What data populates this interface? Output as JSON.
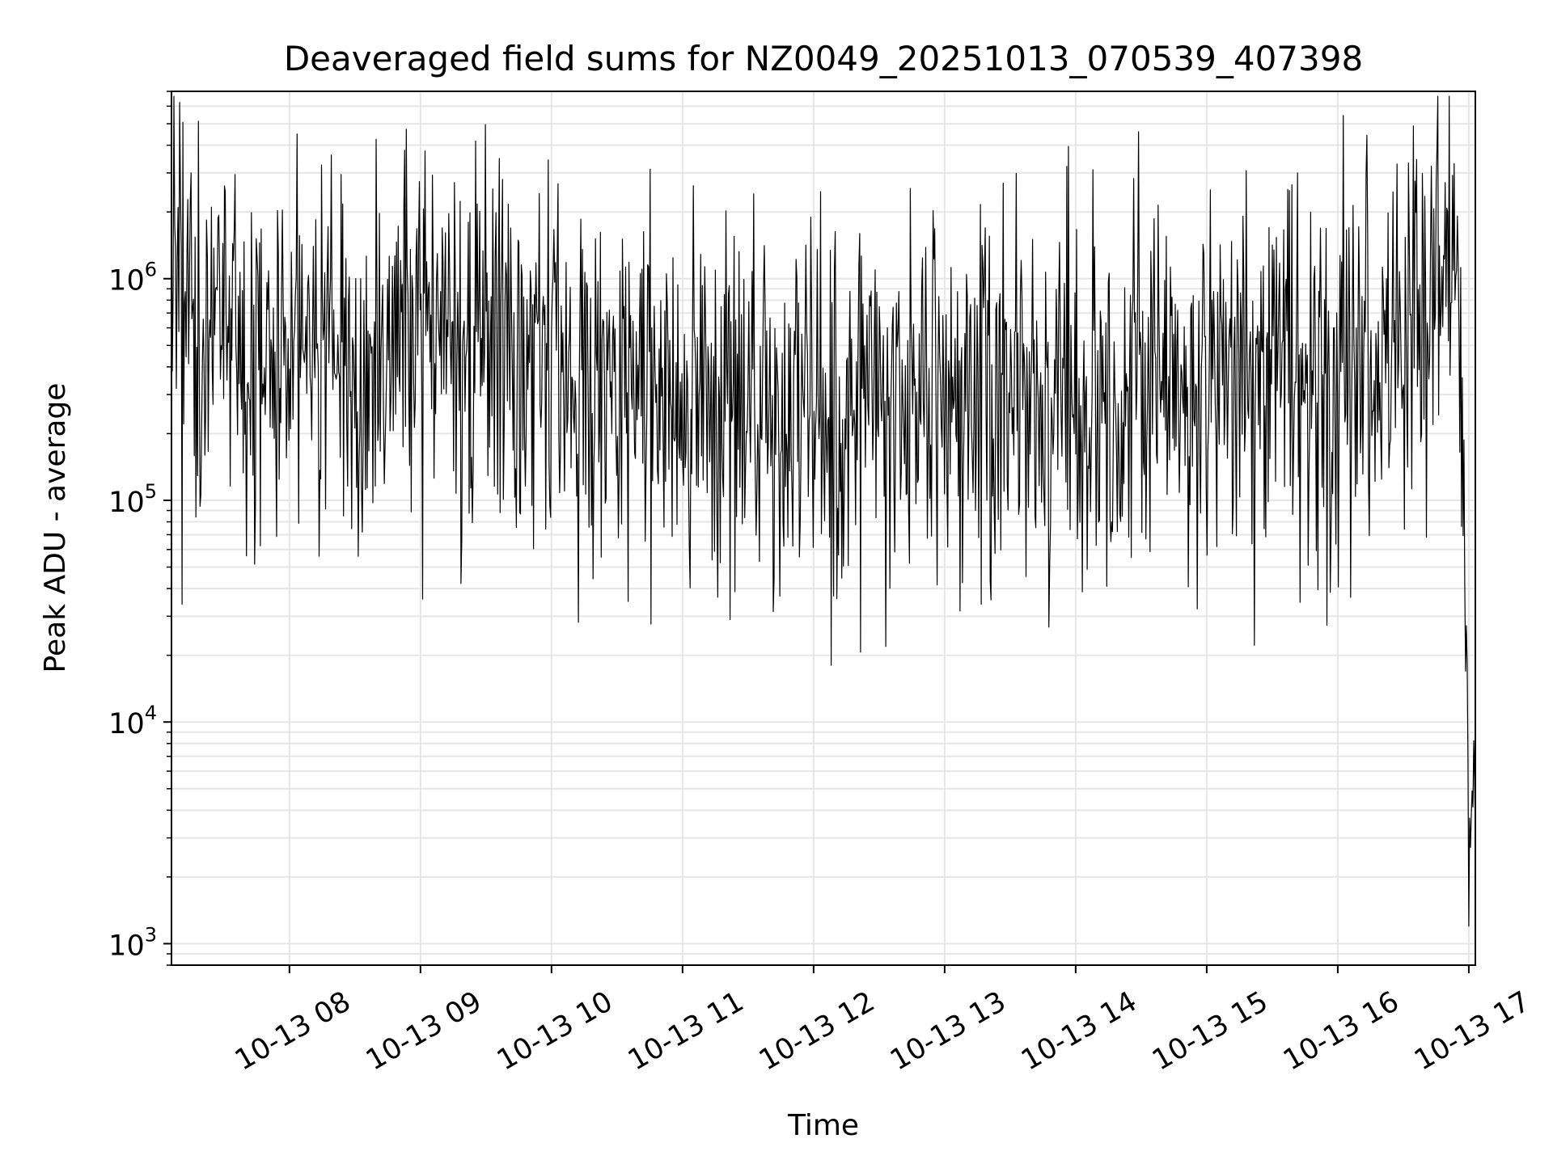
{
  "chart_data": {
    "type": "line",
    "title": "Deaveraged field sums for NZ0049_20251013_070539_407398",
    "xlabel": "Time",
    "ylabel": "Peak ADU - average",
    "yscale": "log",
    "ylim": [
      800,
      7000000
    ],
    "xlim_hours": [
      7.1,
      17.05
    ],
    "grid": true,
    "line_color": "#000000",
    "grid_color": "#e6e6e6",
    "x_ticks": [
      {
        "value": 8,
        "label": "10-13 08"
      },
      {
        "value": 9,
        "label": "10-13 09"
      },
      {
        "value": 10,
        "label": "10-13 10"
      },
      {
        "value": 11,
        "label": "10-13 11"
      },
      {
        "value": 12,
        "label": "10-13 12"
      },
      {
        "value": 13,
        "label": "10-13 13"
      },
      {
        "value": 14,
        "label": "10-13 14"
      },
      {
        "value": 15,
        "label": "10-13 15"
      },
      {
        "value": 16,
        "label": "10-13 16"
      },
      {
        "value": 17,
        "label": "10-13 17"
      }
    ],
    "y_ticks": [
      {
        "value": 1000,
        "base": "10",
        "exp": "3"
      },
      {
        "value": 10000,
        "base": "10",
        "exp": "4"
      },
      {
        "value": 100000,
        "base": "10",
        "exp": "5"
      },
      {
        "value": 1000000,
        "base": "10",
        "exp": "6"
      }
    ],
    "series": [
      {
        "name": "Peak ADU - average",
        "n_samples": 1600,
        "typical_range": [
          50000,
          1500000
        ],
        "median": 330000,
        "x": [
          7.1,
          7.3,
          7.9,
          8.9,
          9.5,
          10.5,
          11.5,
          12.1,
          12.5,
          13.5,
          14.2,
          14.55,
          15.5,
          16.2,
          16.75,
          16.85,
          16.9,
          16.93,
          16.96,
          16.98,
          17.0,
          17.02,
          17.04
        ],
        "y": [
          1200000,
          600000,
          400000,
          550000,
          500000,
          320000,
          250000,
          180000,
          260000,
          300000,
          250000,
          330000,
          320000,
          420000,
          700000,
          1400000,
          1100000,
          400000,
          60000,
          15000,
          10000,
          6000,
          3000
        ],
        "spikes": [
          {
            "x": 7.25,
            "y": 3000000
          },
          {
            "x": 8.88,
            "y": 3800000
          },
          {
            "x": 13.45,
            "y": 2700000
          },
          {
            "x": 14.13,
            "y": 3100000
          },
          {
            "x": 14.48,
            "y": 4600000
          },
          {
            "x": 16.76,
            "y": 3900000
          },
          {
            "x": 7.18,
            "y": 34000
          },
          {
            "x": 12.15,
            "y": 37000
          },
          {
            "x": 17.0,
            "y": 1200
          }
        ]
      }
    ]
  }
}
